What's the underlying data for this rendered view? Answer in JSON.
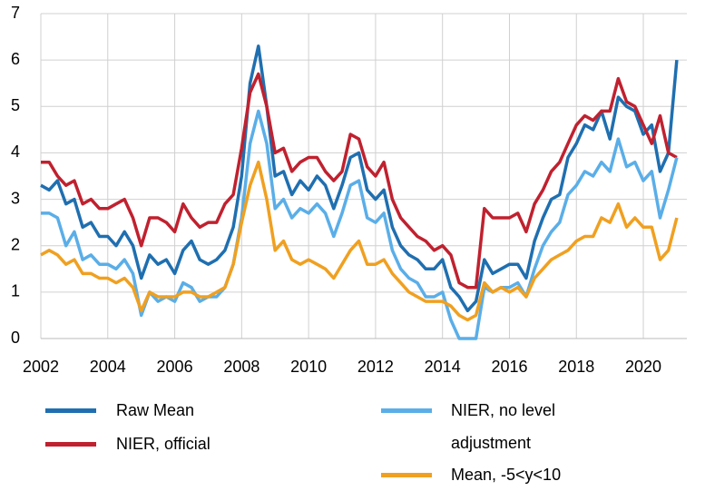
{
  "chart_data": {
    "type": "line",
    "x": [
      2002,
      2002.25,
      2002.5,
      2002.75,
      2003,
      2003.25,
      2003.5,
      2003.75,
      2004,
      2004.25,
      2004.5,
      2004.75,
      2005,
      2005.25,
      2005.5,
      2005.75,
      2006,
      2006.25,
      2006.5,
      2006.75,
      2007,
      2007.25,
      2007.5,
      2007.75,
      2008,
      2008.25,
      2008.5,
      2008.75,
      2009,
      2009.25,
      2009.5,
      2009.75,
      2010,
      2010.25,
      2010.5,
      2010.75,
      2011,
      2011.25,
      2011.5,
      2011.75,
      2012,
      2012.25,
      2012.5,
      2012.75,
      2013,
      2013.25,
      2013.5,
      2013.75,
      2014,
      2014.25,
      2014.5,
      2014.75,
      2015,
      2015.25,
      2015.5,
      2015.75,
      2016,
      2016.25,
      2016.5,
      2016.75,
      2017,
      2017.25,
      2017.5,
      2017.75,
      2018,
      2018.25,
      2018.5,
      2018.75,
      2019,
      2019.25,
      2019.5,
      2019.75,
      2020,
      2020.25,
      2020.5,
      2020.75,
      2021
    ],
    "series": [
      {
        "name": "Raw Mean",
        "color": "#1f6fb0",
        "values": [
          3.3,
          3.2,
          3.4,
          2.9,
          3.0,
          2.4,
          2.5,
          2.2,
          2.2,
          2.0,
          2.3,
          2.0,
          1.3,
          1.8,
          1.6,
          1.7,
          1.4,
          1.9,
          2.1,
          1.7,
          1.6,
          1.7,
          1.9,
          2.4,
          3.5,
          5.5,
          6.3,
          5.0,
          3.5,
          3.6,
          3.1,
          3.4,
          3.2,
          3.5,
          3.3,
          2.8,
          3.3,
          3.9,
          4.0,
          3.2,
          3.0,
          3.2,
          2.4,
          2.0,
          1.8,
          1.7,
          1.5,
          1.5,
          1.7,
          1.1,
          0.9,
          0.6,
          0.8,
          1.7,
          1.4,
          1.5,
          1.6,
          1.6,
          1.3,
          2.1,
          2.6,
          3.0,
          3.1,
          3.9,
          4.2,
          4.6,
          4.5,
          4.9,
          4.3,
          5.2,
          5.0,
          4.9,
          4.4,
          4.6,
          3.6,
          4.0,
          6.0
        ]
      },
      {
        "name": "NIER, official",
        "color": "#c0212f",
        "values": [
          3.8,
          3.8,
          3.5,
          3.3,
          3.4,
          2.9,
          3.0,
          2.8,
          2.8,
          2.9,
          3.0,
          2.6,
          2.0,
          2.6,
          2.6,
          2.5,
          2.3,
          2.9,
          2.6,
          2.4,
          2.5,
          2.5,
          2.9,
          3.1,
          4.1,
          5.3,
          5.7,
          5.0,
          4.0,
          4.1,
          3.6,
          3.8,
          3.9,
          3.9,
          3.6,
          3.4,
          3.6,
          4.4,
          4.3,
          3.7,
          3.5,
          3.8,
          3.0,
          2.6,
          2.4,
          2.2,
          2.1,
          1.9,
          2.0,
          1.8,
          1.2,
          1.1,
          1.1,
          2.8,
          2.6,
          2.6,
          2.6,
          2.7,
          2.3,
          2.9,
          3.2,
          3.6,
          3.8,
          4.2,
          4.6,
          4.8,
          4.7,
          4.9,
          4.9,
          5.6,
          5.1,
          5.0,
          4.6,
          4.2,
          4.8,
          4.0,
          3.9
        ]
      },
      {
        "name": "NIER, no level adjustment",
        "color": "#5aaee8",
        "values": [
          2.7,
          2.7,
          2.6,
          2.0,
          2.3,
          1.7,
          1.8,
          1.6,
          1.6,
          1.5,
          1.7,
          1.4,
          0.5,
          1.0,
          0.8,
          0.9,
          0.8,
          1.2,
          1.1,
          0.8,
          0.9,
          0.9,
          1.1,
          1.6,
          2.6,
          4.2,
          4.9,
          4.2,
          2.8,
          3.0,
          2.6,
          2.8,
          2.7,
          2.9,
          2.7,
          2.2,
          2.7,
          3.3,
          3.4,
          2.6,
          2.5,
          2.7,
          1.9,
          1.5,
          1.3,
          1.2,
          0.9,
          0.9,
          1.0,
          0.4,
          0.0,
          0.0,
          0.0,
          1.1,
          1.0,
          1.1,
          1.1,
          1.2,
          0.9,
          1.5,
          2.0,
          2.3,
          2.5,
          3.1,
          3.3,
          3.6,
          3.5,
          3.8,
          3.6,
          4.3,
          3.7,
          3.8,
          3.4,
          3.6,
          2.6,
          3.2,
          3.9
        ]
      },
      {
        "name": "Mean, -5<y<10",
        "color": "#f0a020",
        "values": [
          1.8,
          1.9,
          1.8,
          1.6,
          1.7,
          1.4,
          1.4,
          1.3,
          1.3,
          1.2,
          1.3,
          1.1,
          0.6,
          1.0,
          0.9,
          0.9,
          0.9,
          1.0,
          1.0,
          0.9,
          0.9,
          1.0,
          1.1,
          1.6,
          2.5,
          3.3,
          3.8,
          3.0,
          1.9,
          2.1,
          1.7,
          1.6,
          1.7,
          1.6,
          1.5,
          1.3,
          1.6,
          1.9,
          2.1,
          1.6,
          1.6,
          1.7,
          1.4,
          1.2,
          1.0,
          0.9,
          0.8,
          0.8,
          0.8,
          0.7,
          0.5,
          0.4,
          0.5,
          1.2,
          1.0,
          1.1,
          1.0,
          1.1,
          0.9,
          1.3,
          1.5,
          1.7,
          1.8,
          1.9,
          2.1,
          2.2,
          2.2,
          2.6,
          2.5,
          2.9,
          2.4,
          2.6,
          2.4,
          2.4,
          1.7,
          1.9,
          2.6
        ]
      }
    ],
    "xlim": [
      2002,
      2021.3
    ],
    "xticks": [
      2002,
      2004,
      2006,
      2008,
      2010,
      2012,
      2014,
      2016,
      2018,
      2020
    ],
    "ylim": [
      0,
      7
    ],
    "yticks": [
      0,
      1,
      2,
      3,
      4,
      5,
      6,
      7
    ],
    "grid": true
  }
}
